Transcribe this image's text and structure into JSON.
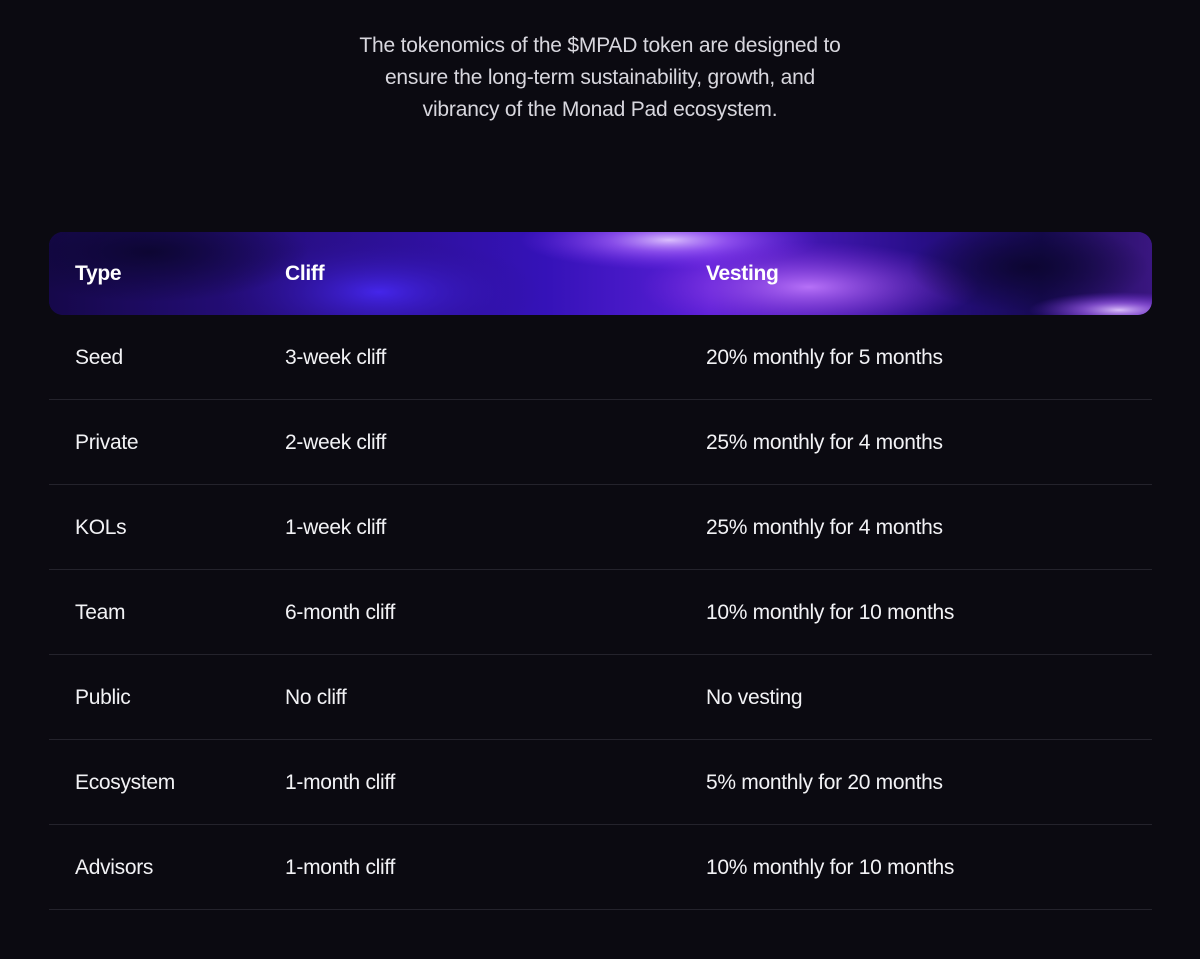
{
  "intro": {
    "line1": "The tokenomics of the $MPAD token are designed to",
    "line2": "ensure the long-term sustainability, growth, and",
    "line3": "vibrancy of the Monad Pad ecosystem."
  },
  "table": {
    "headers": {
      "type": "Type",
      "cliff": "Cliff",
      "vesting": "Vesting"
    },
    "rows": [
      {
        "type": "Seed",
        "cliff": "3-week cliff",
        "vesting": "20% monthly for 5 months"
      },
      {
        "type": "Private",
        "cliff": "2-week cliff",
        "vesting": "25% monthly for 4 months"
      },
      {
        "type": "KOLs",
        "cliff": "1-week cliff",
        "vesting": "25% monthly for 4 months"
      },
      {
        "type": "Team",
        "cliff": "6-month cliff",
        "vesting": "10% monthly for 10 months"
      },
      {
        "type": "Public",
        "cliff": "No cliff",
        "vesting": "No vesting"
      },
      {
        "type": "Ecosystem",
        "cliff": "1-month cliff",
        "vesting": "5% monthly for 20 months"
      },
      {
        "type": "Advisors",
        "cliff": "1-month cliff",
        "vesting": "10% monthly for 10 months"
      }
    ]
  },
  "colors": {
    "background": "#0b0a11",
    "header_accent": "#7b2cf0",
    "divider": "#24232c"
  }
}
